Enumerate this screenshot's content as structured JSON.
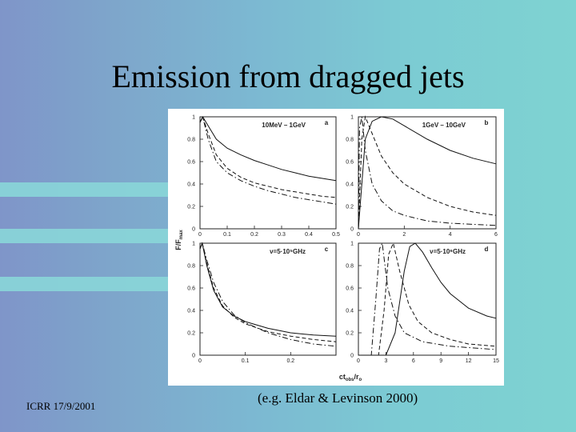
{
  "slide": {
    "title": "Emission from dragged jets",
    "footer_left": "ICRR 17/9/2001",
    "footer_center": "(e.g. Eldar & Levinson  2000)"
  },
  "figure": {
    "y_label": "F/F",
    "y_label_sub": "max",
    "x_label": "ct",
    "x_label_sub": "obs",
    "x_label_tail": "/r",
    "x_label_tail_sub": "o",
    "panels": [
      {
        "id": "a",
        "legend": "10MeV – 1GeV",
        "x_ticks": [
          "0",
          "0.1",
          "0.2",
          "0.3",
          "0.4",
          "0.5"
        ],
        "y_ticks": [
          "0",
          "0.2",
          "0.4",
          "0.6",
          "0.8",
          "1"
        ],
        "xlim": [
          0,
          0.5
        ],
        "curves": [
          {
            "style": "solid",
            "points": [
              [
                0,
                0.95
              ],
              [
                0.01,
                1
              ],
              [
                0.03,
                0.92
              ],
              [
                0.06,
                0.8
              ],
              [
                0.1,
                0.72
              ],
              [
                0.15,
                0.66
              ],
              [
                0.2,
                0.61
              ],
              [
                0.25,
                0.57
              ],
              [
                0.3,
                0.53
              ],
              [
                0.35,
                0.5
              ],
              [
                0.4,
                0.47
              ],
              [
                0.45,
                0.45
              ],
              [
                0.5,
                0.43
              ]
            ]
          },
          {
            "style": "dashed",
            "points": [
              [
                0,
                0.95
              ],
              [
                0.01,
                1
              ],
              [
                0.03,
                0.85
              ],
              [
                0.06,
                0.66
              ],
              [
                0.1,
                0.54
              ],
              [
                0.15,
                0.46
              ],
              [
                0.2,
                0.41
              ],
              [
                0.25,
                0.38
              ],
              [
                0.3,
                0.35
              ],
              [
                0.35,
                0.33
              ],
              [
                0.4,
                0.31
              ],
              [
                0.45,
                0.29
              ],
              [
                0.5,
                0.28
              ]
            ]
          },
          {
            "style": "dashdot",
            "points": [
              [
                0,
                0.95
              ],
              [
                0.01,
                1
              ],
              [
                0.03,
                0.8
              ],
              [
                0.06,
                0.6
              ],
              [
                0.1,
                0.5
              ],
              [
                0.15,
                0.43
              ],
              [
                0.2,
                0.38
              ],
              [
                0.25,
                0.34
              ],
              [
                0.3,
                0.31
              ],
              [
                0.35,
                0.28
              ],
              [
                0.4,
                0.26
              ],
              [
                0.45,
                0.24
              ],
              [
                0.5,
                0.22
              ]
            ]
          }
        ]
      },
      {
        "id": "b",
        "legend": "1GeV – 10GeV",
        "x_ticks": [
          "0",
          "2",
          "4",
          "6"
        ],
        "y_ticks": [
          "0",
          "0.2",
          "0.4",
          "0.6",
          "0.8",
          "1"
        ],
        "xlim": [
          0,
          6
        ],
        "curves": [
          {
            "style": "solid",
            "points": [
              [
                0,
                0
              ],
              [
                0.3,
                0.8
              ],
              [
                0.6,
                0.96
              ],
              [
                1,
                1
              ],
              [
                1.5,
                0.98
              ],
              [
                2,
                0.92
              ],
              [
                3,
                0.8
              ],
              [
                4,
                0.7
              ],
              [
                5,
                0.63
              ],
              [
                6,
                0.58
              ]
            ]
          },
          {
            "style": "dashed",
            "points": [
              [
                0,
                0
              ],
              [
                0.15,
                0.8
              ],
              [
                0.3,
                1
              ],
              [
                0.6,
                0.85
              ],
              [
                1,
                0.65
              ],
              [
                1.5,
                0.5
              ],
              [
                2,
                0.4
              ],
              [
                3,
                0.28
              ],
              [
                4,
                0.2
              ],
              [
                5,
                0.15
              ],
              [
                6,
                0.12
              ]
            ]
          },
          {
            "style": "dashdot",
            "points": [
              [
                0,
                0
              ],
              [
                0.05,
                0.9
              ],
              [
                0.15,
                1
              ],
              [
                0.3,
                0.7
              ],
              [
                0.6,
                0.4
              ],
              [
                1,
                0.25
              ],
              [
                1.5,
                0.16
              ],
              [
                2,
                0.12
              ],
              [
                3,
                0.07
              ],
              [
                4,
                0.05
              ],
              [
                6,
                0.03
              ]
            ]
          }
        ]
      },
      {
        "id": "c",
        "legend": "ν=5·10⁵GHz",
        "x_ticks": [
          "0",
          "0.1",
          "0.2"
        ],
        "y_ticks": [
          "0",
          "0.2",
          "0.4",
          "0.6",
          "0.8",
          "1"
        ],
        "xlim": [
          0,
          0.3
        ],
        "curves": [
          {
            "style": "solid",
            "points": [
              [
                0,
                0.95
              ],
              [
                0.005,
                1
              ],
              [
                0.015,
                0.8
              ],
              [
                0.03,
                0.58
              ],
              [
                0.05,
                0.43
              ],
              [
                0.075,
                0.35
              ],
              [
                0.1,
                0.3
              ],
              [
                0.15,
                0.24
              ],
              [
                0.2,
                0.2
              ],
              [
                0.25,
                0.18
              ],
              [
                0.3,
                0.17
              ]
            ]
          },
          {
            "style": "dashed",
            "points": [
              [
                0,
                0.95
              ],
              [
                0.005,
                1
              ],
              [
                0.015,
                0.82
              ],
              [
                0.03,
                0.6
              ],
              [
                0.05,
                0.44
              ],
              [
                0.075,
                0.34
              ],
              [
                0.1,
                0.28
              ],
              [
                0.15,
                0.21
              ],
              [
                0.2,
                0.17
              ],
              [
                0.25,
                0.14
              ],
              [
                0.3,
                0.12
              ]
            ]
          },
          {
            "style": "dashdot",
            "points": [
              [
                0,
                0.95
              ],
              [
                0.005,
                1
              ],
              [
                0.015,
                0.85
              ],
              [
                0.03,
                0.65
              ],
              [
                0.05,
                0.48
              ],
              [
                0.075,
                0.36
              ],
              [
                0.1,
                0.29
              ],
              [
                0.15,
                0.2
              ],
              [
                0.2,
                0.14
              ],
              [
                0.25,
                0.1
              ],
              [
                0.3,
                0.08
              ]
            ]
          }
        ]
      },
      {
        "id": "d",
        "legend": "ν=5·10⁶GHz",
        "x_ticks": [
          "0",
          "3",
          "6",
          "9",
          "12",
          "15"
        ],
        "y_ticks": [
          "0",
          "0.2",
          "0.4",
          "0.6",
          "0.8",
          "1"
        ],
        "xlim": [
          0,
          15
        ],
        "curves": [
          {
            "style": "solid",
            "points": [
              [
                0,
                0
              ],
              [
                3,
                0
              ],
              [
                4,
                0.2
              ],
              [
                5,
                0.75
              ],
              [
                5.6,
                0.97
              ],
              [
                6.2,
                1
              ],
              [
                7,
                0.92
              ],
              [
                8,
                0.78
              ],
              [
                9,
                0.65
              ],
              [
                10,
                0.55
              ],
              [
                12,
                0.42
              ],
              [
                14,
                0.35
              ],
              [
                15,
                0.33
              ]
            ]
          },
          {
            "style": "dashed",
            "points": [
              [
                0,
                0
              ],
              [
                2.2,
                0
              ],
              [
                2.8,
                0.4
              ],
              [
                3.3,
                0.9
              ],
              [
                3.8,
                1
              ],
              [
                4.5,
                0.75
              ],
              [
                5.5,
                0.45
              ],
              [
                6.5,
                0.3
              ],
              [
                8,
                0.2
              ],
              [
                10,
                0.14
              ],
              [
                12,
                0.1
              ],
              [
                15,
                0.08
              ]
            ]
          },
          {
            "style": "dashdot",
            "points": [
              [
                0,
                0
              ],
              [
                1.4,
                0
              ],
              [
                1.9,
                0.5
              ],
              [
                2.3,
                0.95
              ],
              [
                2.6,
                1
              ],
              [
                3.2,
                0.6
              ],
              [
                4,
                0.35
              ],
              [
                5,
                0.2
              ],
              [
                7,
                0.12
              ],
              [
                10,
                0.08
              ],
              [
                15,
                0.05
              ]
            ]
          }
        ]
      }
    ]
  }
}
